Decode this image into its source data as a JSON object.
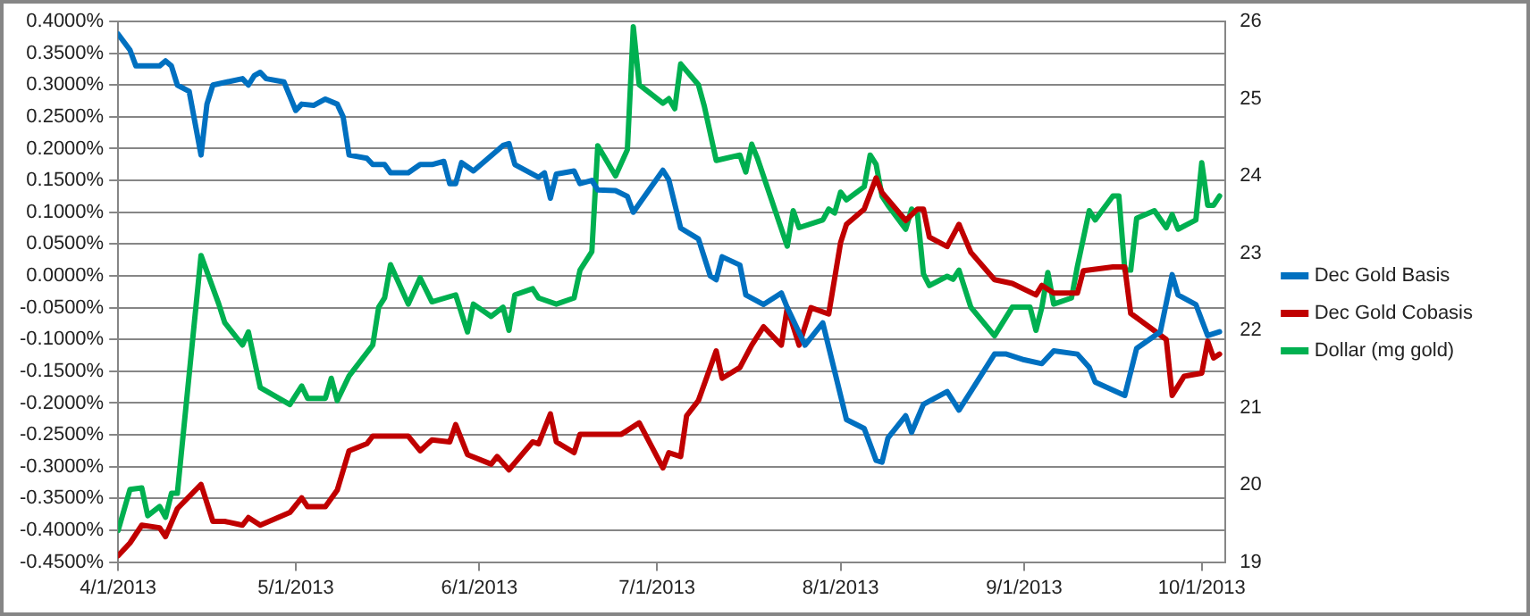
{
  "chart_data": {
    "type": "line",
    "grid": "y",
    "legend": "right",
    "marker": "none",
    "line_style": "solid",
    "xlim": [
      "2013-04-01",
      "2013-10-05"
    ],
    "xticks": [
      {
        "value": "2013-04-01",
        "label": "4/1/2013"
      },
      {
        "value": "2013-05-01",
        "label": "5/1/2013"
      },
      {
        "value": "2013-06-01",
        "label": "6/1/2013"
      },
      {
        "value": "2013-07-01",
        "label": "7/1/2013"
      },
      {
        "value": "2013-08-01",
        "label": "8/1/2013"
      },
      {
        "value": "2013-09-01",
        "label": "9/1/2013"
      },
      {
        "value": "2013-10-01",
        "label": "10/1/2013"
      }
    ],
    "ylim": [
      -0.45,
      0.4
    ],
    "yticks": [
      {
        "value": 0.4,
        "label": "0.4000%"
      },
      {
        "value": 0.35,
        "label": "0.3500%"
      },
      {
        "value": 0.3,
        "label": "0.3000%"
      },
      {
        "value": 0.25,
        "label": "0.2500%"
      },
      {
        "value": 0.2,
        "label": "0.2000%"
      },
      {
        "value": 0.15,
        "label": "0.1500%"
      },
      {
        "value": 0.1,
        "label": "0.1000%"
      },
      {
        "value": 0.05,
        "label": "0.0500%"
      },
      {
        "value": 0,
        "label": "0.0000%"
      },
      {
        "value": -0.05,
        "label": "-0.0500%"
      },
      {
        "value": -0.1,
        "label": "-0.1000%"
      },
      {
        "value": -0.15,
        "label": "-0.1500%"
      },
      {
        "value": -0.2,
        "label": "-0.2000%"
      },
      {
        "value": -0.25,
        "label": "-0.2500%"
      },
      {
        "value": -0.3,
        "label": "-0.3000%"
      },
      {
        "value": -0.35,
        "label": "-0.3500%"
      },
      {
        "value": -0.4,
        "label": "-0.4000%"
      },
      {
        "value": -0.45,
        "label": "-0.4500%"
      }
    ],
    "y2lim": [
      19,
      26
    ],
    "y2ticks": [
      19,
      20,
      21,
      22,
      23,
      24,
      25,
      26
    ],
    "series": [
      {
        "name": "Dec Gold Basis",
        "color": "#0070c0",
        "x": [
          "2013-04-01",
          "2013-04-03",
          "2013-04-04",
          "2013-04-08",
          "2013-04-09",
          "2013-04-10",
          "2013-04-11",
          "2013-04-13",
          "2013-04-15",
          "2013-04-16",
          "2013-04-17",
          "2013-04-22",
          "2013-04-23",
          "2013-04-24",
          "2013-04-25",
          "2013-04-26",
          "2013-04-29",
          "2013-05-01",
          "2013-05-02",
          "2013-05-04",
          "2013-05-06",
          "2013-05-08",
          "2013-05-09",
          "2013-05-10",
          "2013-05-13",
          "2013-05-14",
          "2013-05-16",
          "2013-05-17",
          "2013-05-20",
          "2013-05-22",
          "2013-05-24",
          "2013-05-26",
          "2013-05-27",
          "2013-05-28",
          "2013-05-29",
          "2013-05-31",
          "2013-06-05",
          "2013-06-06",
          "2013-06-07",
          "2013-06-11",
          "2013-06-12",
          "2013-06-13",
          "2013-06-14",
          "2013-06-17",
          "2013-06-18",
          "2013-06-20",
          "2013-06-21",
          "2013-06-24",
          "2013-06-26",
          "2013-06-27",
          "2013-07-02",
          "2013-07-03",
          "2013-07-05",
          "2013-07-08",
          "2013-07-10",
          "2013-07-11",
          "2013-07-12",
          "2013-07-15",
          "2013-07-16",
          "2013-07-19",
          "2013-07-22",
          "2013-07-23",
          "2013-07-26",
          "2013-07-29",
          "2013-08-02",
          "2013-08-05",
          "2013-08-07",
          "2013-08-08",
          "2013-08-09",
          "2013-08-12",
          "2013-08-13",
          "2013-08-15",
          "2013-08-19",
          "2013-08-21",
          "2013-08-23",
          "2013-08-27",
          "2013-08-29",
          "2013-09-01",
          "2013-09-04",
          "2013-09-06",
          "2013-09-10",
          "2013-09-12",
          "2013-09-13",
          "2013-09-18",
          "2013-09-20",
          "2013-09-24",
          "2013-09-26",
          "2013-09-27",
          "2013-09-30",
          "2013-10-02",
          "2013-10-04"
        ],
        "values": [
          0.38,
          0.355,
          0.33,
          0.33,
          0.338,
          0.33,
          0.3,
          0.29,
          0.19,
          0.27,
          0.3,
          0.31,
          0.3,
          0.315,
          0.32,
          0.31,
          0.305,
          0.26,
          0.27,
          0.268,
          0.278,
          0.27,
          0.25,
          0.19,
          0.185,
          0.175,
          0.175,
          0.162,
          0.162,
          0.175,
          0.175,
          0.18,
          0.145,
          0.145,
          0.178,
          0.165,
          0.205,
          0.208,
          0.175,
          0.155,
          0.162,
          0.122,
          0.16,
          0.165,
          0.145,
          0.15,
          0.135,
          0.134,
          0.125,
          0.1,
          0.166,
          0.151,
          0.075,
          0.058,
          0.0,
          -0.006,
          0.03,
          0.017,
          -0.03,
          -0.045,
          -0.027,
          -0.05,
          -0.109,
          -0.074,
          -0.226,
          -0.24,
          -0.29,
          -0.293,
          -0.255,
          -0.22,
          -0.246,
          -0.202,
          -0.182,
          -0.211,
          -0.182,
          -0.123,
          -0.123,
          -0.132,
          -0.138,
          -0.118,
          -0.123,
          -0.144,
          -0.167,
          -0.188,
          -0.114,
          -0.088,
          0.002,
          -0.03,
          -0.045,
          -0.094,
          -0.088
        ]
      },
      {
        "name": "Dec Gold Cobasis",
        "color": "#c00000",
        "x": [
          "2013-04-01",
          "2013-04-03",
          "2013-04-05",
          "2013-04-08",
          "2013-04-09",
          "2013-04-11",
          "2013-04-15",
          "2013-04-17",
          "2013-04-19",
          "2013-04-22",
          "2013-04-23",
          "2013-04-25",
          "2013-04-30",
          "2013-05-02",
          "2013-05-03",
          "2013-05-06",
          "2013-05-08",
          "2013-05-10",
          "2013-05-13",
          "2013-05-14",
          "2013-05-20",
          "2013-05-22",
          "2013-05-24",
          "2013-05-27",
          "2013-05-28",
          "2013-05-30",
          "2013-06-03",
          "2013-06-04",
          "2013-06-06",
          "2013-06-10",
          "2013-06-11",
          "2013-06-13",
          "2013-06-14",
          "2013-06-17",
          "2013-06-18",
          "2013-06-21",
          "2013-06-25",
          "2013-06-28",
          "2013-07-02",
          "2013-07-03",
          "2013-07-05",
          "2013-07-06",
          "2013-07-08",
          "2013-07-10",
          "2013-07-11",
          "2013-07-12",
          "2013-07-15",
          "2013-07-17",
          "2013-07-19",
          "2013-07-22",
          "2013-07-23",
          "2013-07-25",
          "2013-07-27",
          "2013-07-30",
          "2013-08-01",
          "2013-08-02",
          "2013-08-05",
          "2013-08-07",
          "2013-08-08",
          "2013-08-12",
          "2013-08-14",
          "2013-08-15",
          "2013-08-16",
          "2013-08-19",
          "2013-08-21",
          "2013-08-23",
          "2013-08-27",
          "2013-08-30",
          "2013-09-03",
          "2013-09-04",
          "2013-09-06",
          "2013-09-10",
          "2013-09-11",
          "2013-09-16",
          "2013-09-18",
          "2013-09-19",
          "2013-09-25",
          "2013-09-26",
          "2013-09-28",
          "2013-10-01",
          "2013-10-02",
          "2013-10-03",
          "2013-10-04"
        ],
        "values": [
          -0.44,
          -0.42,
          -0.392,
          -0.396,
          -0.41,
          -0.366,
          -0.328,
          -0.386,
          -0.386,
          -0.392,
          -0.38,
          -0.392,
          -0.372,
          -0.349,
          -0.363,
          -0.363,
          -0.337,
          -0.275,
          -0.264,
          -0.252,
          -0.252,
          -0.275,
          -0.258,
          -0.261,
          -0.234,
          -0.281,
          -0.296,
          -0.284,
          -0.305,
          -0.261,
          -0.264,
          -0.217,
          -0.261,
          -0.278,
          -0.249,
          -0.249,
          -0.249,
          -0.231,
          -0.302,
          -0.278,
          -0.284,
          -0.22,
          -0.196,
          -0.144,
          -0.118,
          -0.161,
          -0.144,
          -0.109,
          -0.08,
          -0.109,
          -0.05,
          -0.109,
          -0.05,
          -0.06,
          0.052,
          0.081,
          0.105,
          0.154,
          0.131,
          0.087,
          0.105,
          0.105,
          0.061,
          0.046,
          0.081,
          0.037,
          -0.006,
          -0.012,
          -0.03,
          -0.015,
          -0.027,
          -0.027,
          0.008,
          0.014,
          0.014,
          -0.059,
          -0.1,
          -0.188,
          -0.158,
          -0.153,
          -0.103,
          -0.129,
          -0.123
        ]
      },
      {
        "name": "Dollar (mg gold)",
        "color": "#00b050",
        "axis": "y2",
        "x": [
          "2013-04-01",
          "2013-04-03",
          "2013-04-05",
          "2013-04-06",
          "2013-04-08",
          "2013-04-09",
          "2013-04-10",
          "2013-04-11",
          "2013-04-15",
          "2013-04-18",
          "2013-04-19",
          "2013-04-22",
          "2013-04-23",
          "2013-04-25",
          "2013-04-30",
          "2013-05-02",
          "2013-05-03",
          "2013-05-06",
          "2013-05-07",
          "2013-05-08",
          "2013-05-10",
          "2013-05-14",
          "2013-05-15",
          "2013-05-16",
          "2013-05-17",
          "2013-05-20",
          "2013-05-22",
          "2013-05-24",
          "2013-05-28",
          "2013-05-30",
          "2013-05-31",
          "2013-06-03",
          "2013-06-05",
          "2013-06-06",
          "2013-06-07",
          "2013-06-10",
          "2013-06-11",
          "2013-06-14",
          "2013-06-17",
          "2013-06-18",
          "2013-06-20",
          "2013-06-21",
          "2013-06-24",
          "2013-06-26",
          "2013-06-27",
          "2013-06-28",
          "2013-07-02",
          "2013-07-03",
          "2013-07-04",
          "2013-07-05",
          "2013-07-08",
          "2013-07-09",
          "2013-07-11",
          "2013-07-15",
          "2013-07-16",
          "2013-07-17",
          "2013-07-18",
          "2013-07-23",
          "2013-07-24",
          "2013-07-25",
          "2013-07-29",
          "2013-07-30",
          "2013-07-31",
          "2013-08-01",
          "2013-08-02",
          "2013-08-05",
          "2013-08-06",
          "2013-08-07",
          "2013-08-08",
          "2013-08-09",
          "2013-08-12",
          "2013-08-13",
          "2013-08-14",
          "2013-08-15",
          "2013-08-16",
          "2013-08-19",
          "2013-08-20",
          "2013-08-21",
          "2013-08-23",
          "2013-08-27",
          "2013-08-30",
          "2013-09-02",
          "2013-09-03",
          "2013-09-04",
          "2013-09-05",
          "2013-09-06",
          "2013-09-09",
          "2013-09-10",
          "2013-09-12",
          "2013-09-13",
          "2013-09-16",
          "2013-09-17",
          "2013-09-18",
          "2013-09-19",
          "2013-09-20",
          "2013-09-23",
          "2013-09-25",
          "2013-09-26",
          "2013-09-27",
          "2013-09-30",
          "2013-10-01",
          "2013-10-02",
          "2013-10-03",
          "2013-10-04"
        ],
        "values": [
          19.41,
          19.94,
          19.96,
          19.6,
          19.72,
          19.58,
          19.89,
          19.89,
          22.97,
          22.34,
          22.1,
          21.81,
          21.98,
          21.26,
          21.04,
          21.28,
          21.12,
          21.12,
          21.38,
          21.09,
          21.41,
          21.81,
          22.3,
          22.42,
          22.85,
          22.34,
          22.68,
          22.37,
          22.46,
          21.98,
          22.34,
          22.18,
          22.3,
          22.0,
          22.46,
          22.54,
          22.42,
          22.34,
          22.42,
          22.78,
          23.02,
          24.39,
          24.0,
          24.34,
          25.93,
          25.18,
          24.94,
          25.0,
          24.87,
          25.45,
          25.18,
          24.9,
          24.2,
          24.27,
          24.05,
          24.41,
          24.22,
          23.09,
          23.55,
          23.33,
          23.43,
          23.57,
          23.52,
          23.79,
          23.69,
          23.86,
          24.27,
          24.15,
          23.74,
          23.62,
          23.31,
          23.57,
          23.5,
          22.73,
          22.58,
          22.7,
          22.66,
          22.78,
          22.3,
          21.93,
          22.3,
          22.3,
          22.0,
          22.3,
          22.75,
          22.34,
          22.42,
          22.83,
          23.55,
          23.43,
          23.74,
          23.74,
          22.78,
          22.78,
          23.45,
          23.55,
          23.33,
          23.5,
          23.31,
          23.43,
          24.17,
          23.62,
          23.62,
          23.74
        ]
      }
    ]
  }
}
